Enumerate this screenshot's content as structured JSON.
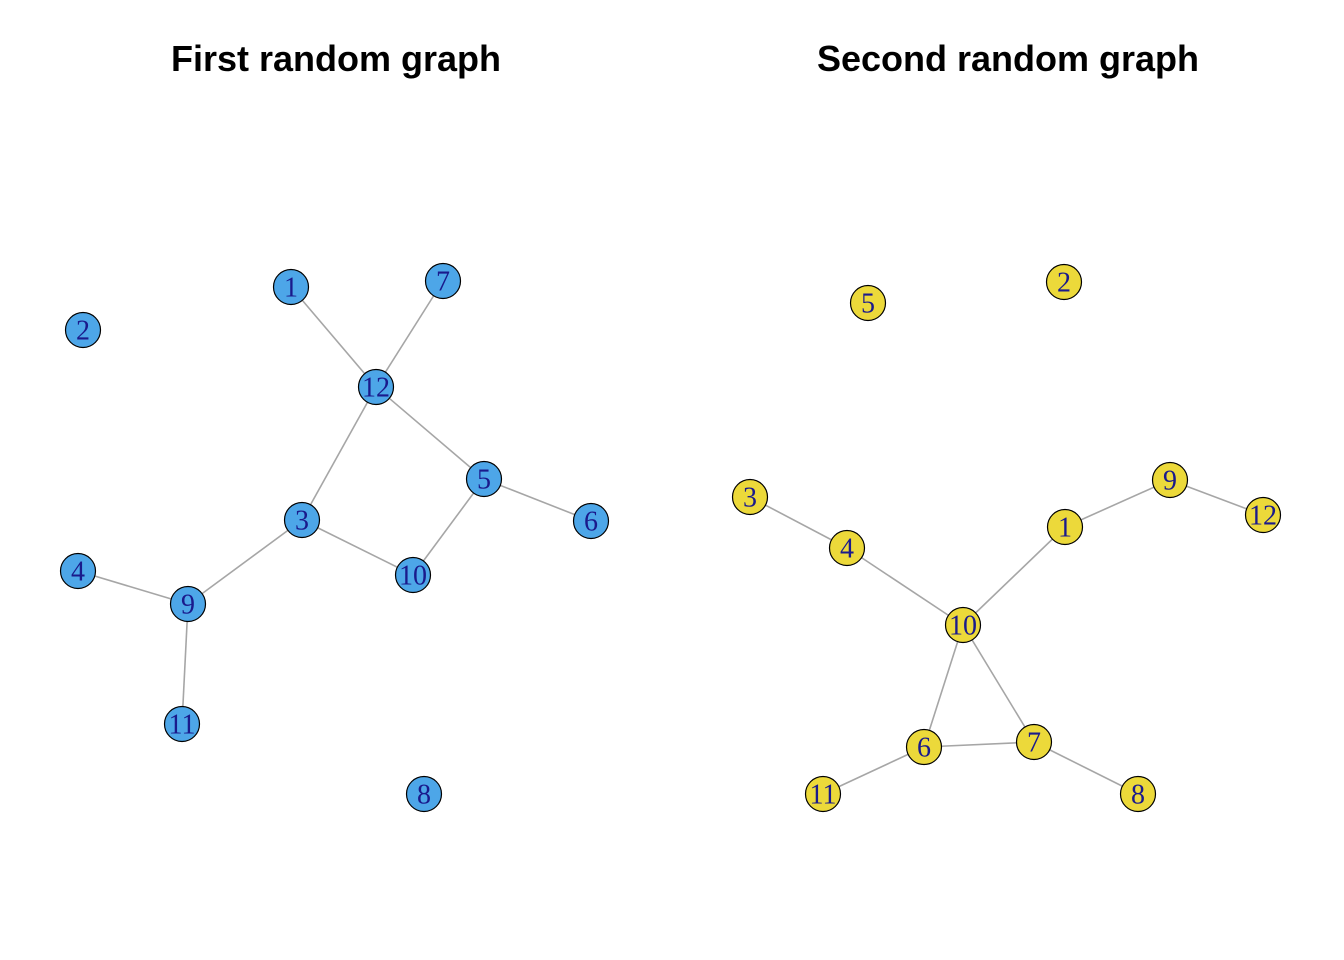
{
  "graphs": [
    {
      "title": "First random graph",
      "node_fill": "#4da6e8",
      "label_color": "#1a1a8c",
      "nodes": [
        "1",
        "2",
        "3",
        "4",
        "5",
        "6",
        "7",
        "8",
        "9",
        "10",
        "11",
        "12"
      ],
      "edges": [
        [
          "1",
          "12"
        ],
        [
          "7",
          "12"
        ],
        [
          "12",
          "3"
        ],
        [
          "12",
          "5"
        ],
        [
          "5",
          "6"
        ],
        [
          "5",
          "10"
        ],
        [
          "3",
          "10"
        ],
        [
          "3",
          "9"
        ],
        [
          "4",
          "9"
        ],
        [
          "9",
          "11"
        ]
      ]
    },
    {
      "title": "Second random graph",
      "node_fill": "#ecd93a",
      "label_color": "#1a1a8c",
      "nodes": [
        "1",
        "2",
        "3",
        "4",
        "5",
        "6",
        "7",
        "8",
        "9",
        "10",
        "11",
        "12"
      ],
      "edges": [
        [
          "3",
          "4"
        ],
        [
          "4",
          "10"
        ],
        [
          "10",
          "1"
        ],
        [
          "1",
          "9"
        ],
        [
          "9",
          "12"
        ],
        [
          "10",
          "6"
        ],
        [
          "10",
          "7"
        ],
        [
          "6",
          "7"
        ],
        [
          "6",
          "11"
        ],
        [
          "7",
          "8"
        ]
      ]
    }
  ]
}
